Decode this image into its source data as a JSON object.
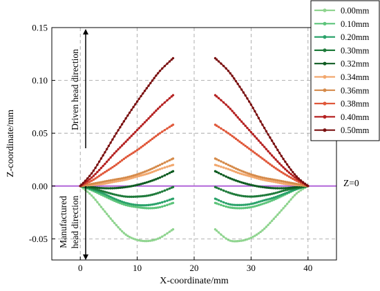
{
  "chart_data": {
    "type": "line",
    "xlabel": "X-coordinate/mm",
    "ylabel": "Z-coordinate/mm",
    "xlim": [
      -5,
      45
    ],
    "ylim": [
      -0.07,
      0.15
    ],
    "xticks": [
      0,
      10,
      20,
      30,
      40
    ],
    "yticks": [
      -0.05,
      0.0,
      0.05,
      0.1,
      0.15
    ],
    "xtick_labels": [
      "0",
      "10",
      "20",
      "30",
      "40"
    ],
    "ytick_labels": [
      "-0.05",
      "0.00",
      "0.05",
      "0.10",
      "0.15"
    ],
    "grid": true,
    "legend_position": "top-right",
    "annotations": {
      "up_arrow_label": "Driven head direction",
      "down_arrow_label_line1": "Manufactured",
      "down_arrow_label_line2": "head direction",
      "reference_line_label": "Z=0"
    },
    "reference_line": {
      "y": 0,
      "color": "#b266d9"
    },
    "left_x": [
      0,
      2,
      4,
      6,
      8,
      10,
      12,
      14,
      16.3
    ],
    "right_x": [
      23.7,
      26,
      28,
      30,
      32,
      34,
      36,
      38,
      40
    ],
    "series": [
      {
        "name": "0.00mm",
        "color": "#8fd48f",
        "left": [
          0,
          -0.009,
          -0.022,
          -0.035,
          -0.046,
          -0.051,
          -0.052,
          -0.049,
          -0.041
        ],
        "right": [
          -0.041,
          -0.051,
          -0.052,
          -0.049,
          -0.042,
          -0.031,
          -0.019,
          -0.007,
          0
        ]
      },
      {
        "name": "0.10mm",
        "color": "#5cc47a",
        "left": [
          0,
          -0.004,
          -0.009,
          -0.014,
          -0.018,
          -0.02,
          -0.021,
          -0.02,
          -0.016
        ],
        "right": [
          -0.016,
          -0.02,
          -0.021,
          -0.02,
          -0.017,
          -0.013,
          -0.008,
          -0.003,
          0
        ]
      },
      {
        "name": "0.20mm",
        "color": "#2aa26a",
        "left": [
          0,
          -0.003,
          -0.007,
          -0.012,
          -0.016,
          -0.018,
          -0.018,
          -0.016,
          -0.012
        ],
        "right": [
          -0.012,
          -0.017,
          -0.018,
          -0.017,
          -0.014,
          -0.011,
          -0.007,
          -0.003,
          0
        ]
      },
      {
        "name": "0.30mm",
        "color": "#1e7a3a",
        "left": [
          0,
          -0.002,
          -0.005,
          -0.008,
          -0.01,
          -0.01,
          -0.009,
          -0.006,
          -0.001
        ],
        "right": [
          -0.001,
          -0.006,
          -0.009,
          -0.01,
          -0.009,
          -0.007,
          -0.004,
          -0.002,
          0
        ]
      },
      {
        "name": "0.32mm",
        "color": "#0f5c22",
        "left": [
          0,
          -0.001,
          -0.002,
          -0.002,
          -0.001,
          0.001,
          0.004,
          0.008,
          0.014
        ],
        "right": [
          0.014,
          0.008,
          0.004,
          0.001,
          -0.001,
          -0.002,
          -0.002,
          -0.001,
          0
        ]
      },
      {
        "name": "0.34mm",
        "color": "#f2a86e",
        "left": [
          0,
          0.001,
          0.002,
          0.004,
          0.006,
          0.009,
          0.012,
          0.016,
          0.02
        ],
        "right": [
          0.02,
          0.016,
          0.012,
          0.009,
          0.006,
          0.004,
          0.002,
          0.001,
          0
        ]
      },
      {
        "name": "0.36mm",
        "color": "#d58a4a",
        "left": [
          0,
          0.002,
          0.004,
          0.006,
          0.008,
          0.011,
          0.015,
          0.02,
          0.026
        ],
        "right": [
          0.026,
          0.02,
          0.015,
          0.011,
          0.008,
          0.006,
          0.004,
          0.002,
          0
        ]
      },
      {
        "name": "0.38mm",
        "color": "#e0583a",
        "left": [
          0,
          0.005,
          0.012,
          0.019,
          0.027,
          0.034,
          0.042,
          0.05,
          0.058
        ],
        "right": [
          0.058,
          0.05,
          0.042,
          0.034,
          0.026,
          0.018,
          0.011,
          0.005,
          0
        ]
      },
      {
        "name": "0.40mm",
        "color": "#b52222",
        "left": [
          0,
          0.008,
          0.019,
          0.031,
          0.042,
          0.053,
          0.064,
          0.075,
          0.086
        ],
        "right": [
          0.086,
          0.075,
          0.063,
          0.051,
          0.039,
          0.027,
          0.016,
          0.007,
          0
        ]
      },
      {
        "name": "0.50mm",
        "color": "#7a1010",
        "left": [
          0,
          0.012,
          0.029,
          0.047,
          0.064,
          0.08,
          0.095,
          0.109,
          0.121
        ],
        "right": [
          0.121,
          0.109,
          0.094,
          0.077,
          0.058,
          0.04,
          0.023,
          0.009,
          0
        ]
      }
    ]
  }
}
